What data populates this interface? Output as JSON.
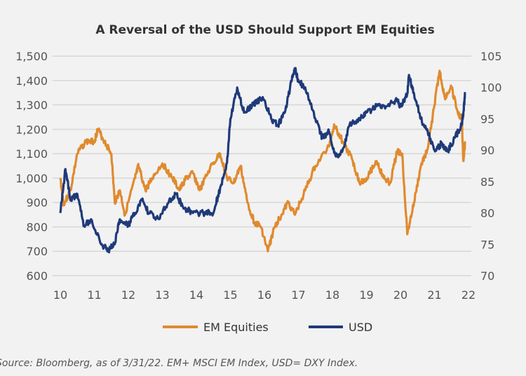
{
  "chart_data": {
    "type": "line",
    "title": "A Reversal of the USD Should Support EM Equities",
    "x_ticks": [
      "10",
      "11",
      "12",
      "13",
      "14",
      "15",
      "16",
      "17",
      "18",
      "19",
      "20",
      "21",
      "22"
    ],
    "xlim": [
      10,
      22
    ],
    "y_left": {
      "ticks": [
        "600",
        "700",
        "800",
        "900",
        "1,000",
        "1,100",
        "1,200",
        "1,300",
        "1,400",
        "1,500"
      ],
      "ylim": [
        600,
        1500
      ]
    },
    "y_right": {
      "ticks": [
        "70",
        "75",
        "80",
        "85",
        "90",
        "95",
        "100",
        "105"
      ],
      "ylim": [
        70,
        105
      ]
    },
    "grid": true,
    "legend_position": "bottom",
    "series": [
      {
        "name": "EM Equities",
        "axis": "left",
        "color": "#e08a2e",
        "x": [
          10.0,
          10.1,
          10.3,
          10.5,
          10.75,
          11.0,
          11.1,
          11.3,
          11.5,
          11.6,
          11.75,
          11.9,
          12.2,
          12.3,
          12.5,
          12.7,
          13.0,
          13.3,
          13.5,
          13.7,
          13.9,
          14.1,
          14.4,
          14.7,
          14.9,
          15.1,
          15.3,
          15.5,
          15.7,
          15.9,
          16.1,
          16.3,
          16.5,
          16.7,
          16.9,
          17.2,
          17.5,
          17.9,
          18.05,
          18.3,
          18.6,
          18.8,
          19.0,
          19.3,
          19.5,
          19.7,
          19.9,
          20.05,
          20.2,
          20.4,
          20.6,
          20.8,
          21.0,
          21.15,
          21.3,
          21.5,
          21.7,
          21.8,
          21.85,
          21.9
        ],
        "y": [
          1000,
          890,
          950,
          1100,
          1150,
          1150,
          1200,
          1150,
          1100,
          900,
          950,
          850,
          1000,
          1050,
          950,
          1000,
          1060,
          1000,
          950,
          1000,
          1020,
          950,
          1040,
          1100,
          1000,
          980,
          1050,
          900,
          820,
          800,
          700,
          800,
          850,
          900,
          850,
          950,
          1050,
          1130,
          1220,
          1150,
          1070,
          980,
          1000,
          1070,
          1000,
          980,
          1110,
          1100,
          770,
          900,
          1050,
          1120,
          1300,
          1440,
          1330,
          1370,
          1260,
          1250,
          1070,
          1140
        ]
      },
      {
        "name": "USD",
        "axis": "right",
        "color": "#1f3a7a",
        "x": [
          10.0,
          10.15,
          10.3,
          10.5,
          10.7,
          10.9,
          11.2,
          11.4,
          11.6,
          11.75,
          12.0,
          12.2,
          12.4,
          12.6,
          12.9,
          13.2,
          13.4,
          13.6,
          13.9,
          14.2,
          14.5,
          14.7,
          14.9,
          15.0,
          15.2,
          15.4,
          15.6,
          15.8,
          16.0,
          16.2,
          16.4,
          16.6,
          16.8,
          16.9,
          17.0,
          17.2,
          17.5,
          17.7,
          17.9,
          18.1,
          18.3,
          18.5,
          18.8,
          19.0,
          19.3,
          19.6,
          19.9,
          20.0,
          20.2,
          20.25,
          20.4,
          20.6,
          20.8,
          21.0,
          21.2,
          21.4,
          21.6,
          21.8,
          21.85,
          21.9
        ],
        "y": [
          80,
          87,
          82,
          83,
          78,
          79,
          75,
          74,
          75,
          79,
          78,
          80,
          82,
          80,
          79,
          82,
          83,
          81,
          80,
          80,
          80,
          84,
          88,
          95,
          100,
          96,
          97,
          98,
          98,
          95,
          94,
          96,
          101,
          103,
          101,
          100,
          95,
          92,
          93,
          89,
          90,
          94,
          95,
          96,
          97,
          97,
          98,
          97,
          99,
          102,
          99,
          95,
          93,
          90,
          91,
          90,
          92,
          94,
          96,
          99
        ]
      }
    ]
  },
  "source_note": "Source: Bloomberg, as of 3/31/22. EM+ MSCI EM Index, USD= DXY Index."
}
